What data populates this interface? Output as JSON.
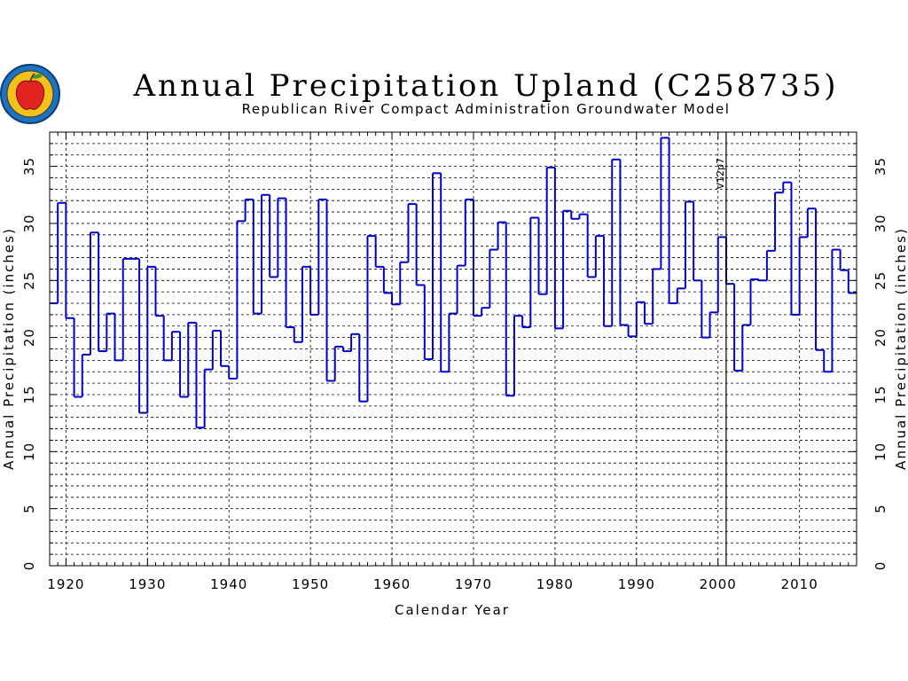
{
  "chart_data": {
    "type": "line",
    "title": "Annual Precipitation Upland (C258735)",
    "subtitle": "Republican River Compact Administration Groundwater Model",
    "xlabel": "Calendar Year",
    "ylabel": "Annual Precipitation (inches)",
    "ylabel_right": "Annual Precipitation (inches)",
    "xlim": [
      1918,
      2017
    ],
    "ylim": [
      0,
      38
    ],
    "x_ticks": [
      "1920",
      "1930",
      "1940",
      "1950",
      "1960",
      "1970",
      "1980",
      "1990",
      "2000",
      "2010"
    ],
    "y_ticks": [
      "0",
      "5",
      "10",
      "15",
      "20",
      "25",
      "30",
      "35"
    ],
    "grid": true,
    "step": true,
    "series_color": "#0000cc",
    "marker": {
      "x": 2001,
      "label": "V12p7"
    },
    "series": [
      {
        "x": [
          1918,
          1919,
          1920,
          1921,
          1922,
          1923,
          1924,
          1925,
          1926,
          1927,
          1928,
          1929,
          1930,
          1931,
          1932,
          1933,
          1934,
          1935,
          1936,
          1937,
          1938,
          1939,
          1940,
          1941,
          1942,
          1943,
          1944,
          1945,
          1946,
          1947,
          1948,
          1949,
          1950,
          1951,
          1952,
          1953,
          1954,
          1955,
          1956,
          1957,
          1958,
          1959,
          1960,
          1961,
          1962,
          1963,
          1964,
          1965,
          1966,
          1967,
          1968,
          1969,
          1970,
          1971,
          1972,
          1973,
          1974,
          1975,
          1976,
          1977,
          1978,
          1979,
          1980,
          1981,
          1982,
          1983,
          1984,
          1985,
          1986,
          1987,
          1988,
          1989,
          1990,
          1991,
          1992,
          1993,
          1994,
          1995,
          1996,
          1997,
          1998,
          1999,
          2000,
          2001,
          2002,
          2003,
          2004,
          2005,
          2006,
          2007,
          2008,
          2009,
          2010,
          2011,
          2012,
          2013,
          2014,
          2015,
          2016
        ],
        "values": [
          23.0,
          31.8,
          21.7,
          14.8,
          18.5,
          29.2,
          18.8,
          22.1,
          18.0,
          26.9,
          26.9,
          13.4,
          26.2,
          21.9,
          18.0,
          20.5,
          14.8,
          21.3,
          12.1,
          17.2,
          20.6,
          17.5,
          16.4,
          30.2,
          32.1,
          22.1,
          32.5,
          25.3,
          32.2,
          20.9,
          19.6,
          26.2,
          22.0,
          32.1,
          16.2,
          19.2,
          18.8,
          20.3,
          14.4,
          28.9,
          26.2,
          23.9,
          22.9,
          26.6,
          31.7,
          24.6,
          18.1,
          34.4,
          17.0,
          22.1,
          26.3,
          32.1,
          21.9,
          22.6,
          27.7,
          30.1,
          14.9,
          21.9,
          20.9,
          30.5,
          23.8,
          34.9,
          20.8,
          31.1,
          30.4,
          30.8,
          25.3,
          28.9,
          21.0,
          35.6,
          21.1,
          20.1,
          23.1,
          21.2,
          26.0,
          37.5,
          23.0,
          24.3,
          31.9,
          25.0,
          20.0,
          22.2,
          28.8,
          24.7,
          17.1,
          21.1,
          25.1,
          25.0,
          27.6,
          32.7,
          33.6,
          22.0,
          28.8,
          31.3,
          18.9,
          17.0,
          27.7,
          25.9,
          23.9
        ]
      }
    ]
  }
}
